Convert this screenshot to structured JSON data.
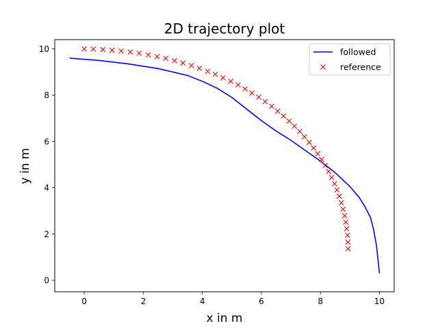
{
  "chart_data": {
    "type": "line",
    "title": "2D trajectory plot",
    "xlabel": "x in m",
    "ylabel": "y in m",
    "xlim": [
      -1,
      10.5
    ],
    "ylim": [
      -0.5,
      10.4
    ],
    "xticks": [
      0,
      2,
      4,
      6,
      8,
      10
    ],
    "yticks": [
      0,
      2,
      4,
      6,
      8,
      10
    ],
    "xtick_labels": [
      "0",
      "2",
      "4",
      "6",
      "8",
      "10"
    ],
    "ytick_labels": [
      "0",
      "2",
      "4",
      "6",
      "8",
      "10"
    ],
    "grid": false,
    "legend_position": "top-right",
    "series": [
      {
        "name": "followed",
        "style": "line",
        "color": "#0000ff",
        "x": [
          -0.5,
          0.5,
          1.5,
          2.5,
          3.5,
          4.0,
          4.5,
          5.0,
          5.5,
          6.0,
          6.5,
          7.0,
          7.5,
          8.0,
          8.5,
          9.0,
          9.3,
          9.5,
          9.7,
          9.8,
          9.9,
          9.95,
          10.0
        ],
        "y": [
          9.6,
          9.5,
          9.35,
          9.15,
          8.85,
          8.6,
          8.3,
          7.9,
          7.4,
          6.9,
          6.45,
          6.05,
          5.6,
          5.15,
          4.65,
          4.05,
          3.6,
          3.2,
          2.7,
          2.2,
          1.5,
          0.9,
          0.3
        ]
      },
      {
        "name": "reference",
        "style": "marker-x",
        "color": "#ff0000",
        "x": [
          0.0,
          0.31,
          0.63,
          0.94,
          1.25,
          1.56,
          1.86,
          2.17,
          2.47,
          2.76,
          3.06,
          3.34,
          3.63,
          3.9,
          4.18,
          4.44,
          4.7,
          4.96,
          5.21,
          5.45,
          5.68,
          5.91,
          6.13,
          6.35,
          6.55,
          6.75,
          6.94,
          7.12,
          7.3,
          7.46,
          7.62,
          7.77,
          7.91,
          8.04,
          8.16,
          8.28,
          8.38,
          8.48,
          8.56,
          8.64,
          8.71,
          8.77,
          8.82,
          8.86,
          8.89,
          8.92,
          8.93,
          8.94
        ],
        "y": [
          10.0,
          9.99,
          9.97,
          9.94,
          9.91,
          9.86,
          9.81,
          9.74,
          9.67,
          9.59,
          9.49,
          9.39,
          9.28,
          9.16,
          9.03,
          8.9,
          8.75,
          8.6,
          8.44,
          8.27,
          8.09,
          7.91,
          7.72,
          7.52,
          7.31,
          7.1,
          6.88,
          6.66,
          6.43,
          6.2,
          5.96,
          5.72,
          5.47,
          5.22,
          4.96,
          4.7,
          4.44,
          4.17,
          3.9,
          3.63,
          3.35,
          3.07,
          2.79,
          2.51,
          2.23,
          1.94,
          1.65,
          1.36
        ]
      }
    ]
  }
}
